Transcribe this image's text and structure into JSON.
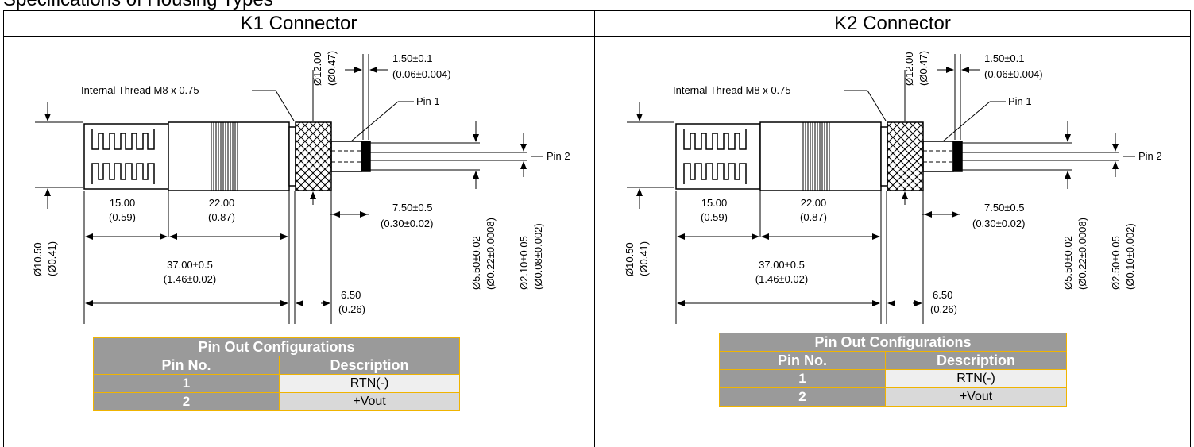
{
  "title": "Specifications of Housing Types",
  "k1": {
    "header": "K1 Connector",
    "thread": "Internal Thread M8 x 0.75",
    "d12": "Ø12.00",
    "d12in": "(Ø0.47)",
    "t15": "1.50±0.1",
    "t15in": "(0.06±0.004)",
    "pin1": "Pin 1",
    "pin2": "Pin 2",
    "l15": "15.00",
    "l15in": "(0.59)",
    "l22": "22.00",
    "l22in": "(0.87)",
    "l750": "7.50±0.5",
    "l750in": "(0.30±0.02)",
    "d1050": "Ø10.50",
    "d1050in": "(Ø0.41)",
    "l37": "37.00±0.5",
    "l37in": "(1.46±0.02)",
    "l650": "6.50",
    "l650in": "(0.26)",
    "d550": "Ø5.50±0.02",
    "d550in": "(Ø0.22±0.0008)",
    "dpin": "Ø2.10±0.05",
    "dpinin": "(Ø0.08±0.002)",
    "table": {
      "title": "Pin Out Configurations",
      "col1": "Pin No.",
      "col2": "Description",
      "rows": [
        {
          "no": "1",
          "desc": "RTN(-)"
        },
        {
          "no": "2",
          "desc": "+Vout"
        }
      ]
    }
  },
  "k2": {
    "header": "K2 Connector",
    "thread": "Internal Thread M8 x 0.75",
    "d12": "Ø12.00",
    "d12in": "(Ø0.47)",
    "t15": "1.50±0.1",
    "t15in": "(0.06±0.004)",
    "pin1": "Pin 1",
    "pin2": "Pin 2",
    "l15": "15.00",
    "l15in": "(0.59)",
    "l22": "22.00",
    "l22in": "(0.87)",
    "l750": "7.50±0.5",
    "l750in": "(0.30±0.02)",
    "d1050": "Ø10.50",
    "d1050in": "(Ø0.41)",
    "l37": "37.00±0.5",
    "l37in": "(1.46±0.02)",
    "l650": "6.50",
    "l650in": "(0.26)",
    "d550": "Ø5.50±0.02",
    "d550in": "(Ø0.22±0.0008)",
    "dpin": "Ø2.50±0.05",
    "dpinin": "(Ø0.10±0.002)",
    "table": {
      "title": "Pin Out Configurations",
      "col1": "Pin No.",
      "col2": "Description",
      "rows": [
        {
          "no": "1",
          "desc": "RTN(-)"
        },
        {
          "no": "2",
          "desc": "+Vout"
        }
      ]
    }
  }
}
